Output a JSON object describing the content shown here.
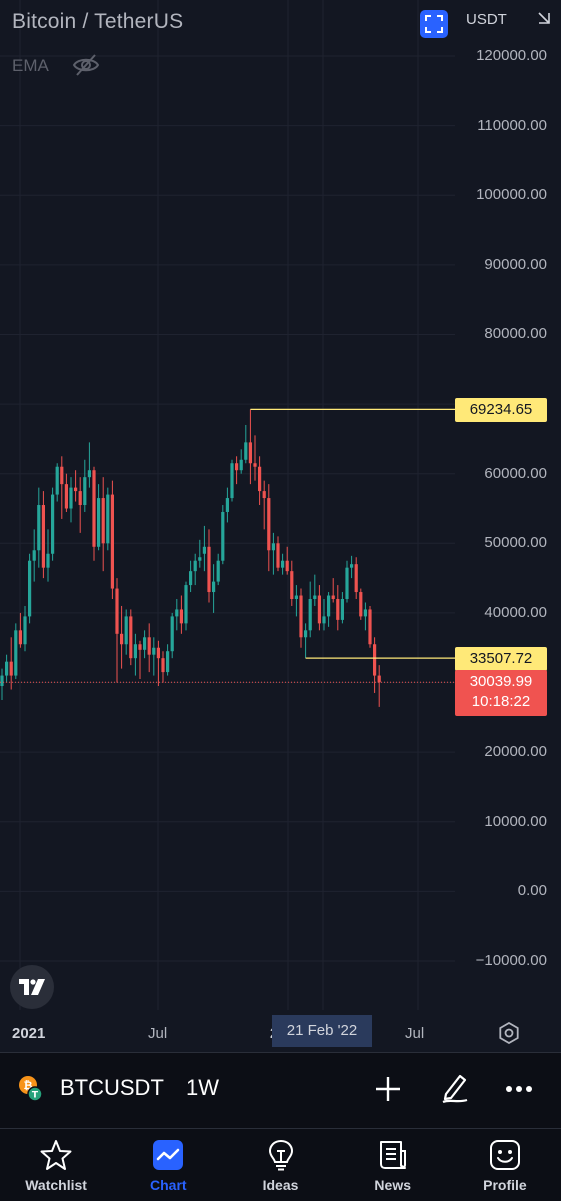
{
  "header": {
    "title": "Bitcoin / TetherUS",
    "indicator": "EMA",
    "currency": "USDT"
  },
  "price_axis": [
    "120000.00",
    "110000.00",
    "100000.00",
    "90000.00",
    "80000.00",
    "60000.00",
    "50000.00",
    "40000.00",
    "20000.00",
    "10000.00",
    "0.00",
    "−10000.00"
  ],
  "time_axis": {
    "labels": [
      {
        "text": "2021",
        "bold": true
      },
      {
        "text": "Jul",
        "bold": false
      },
      {
        "text": "2022",
        "bold": true
      },
      {
        "text": "Jul",
        "bold": false
      }
    ],
    "crosshair_date": "21 Feb '22"
  },
  "tags": {
    "high": "69234.65",
    "low": "33507.72",
    "last_price": "30039.99",
    "countdown": "10:18:22"
  },
  "symbol_bar": {
    "symbol": "BTCUSDT",
    "interval": "1W"
  },
  "nav": {
    "items": [
      {
        "label": "Watchlist",
        "icon": "star-icon"
      },
      {
        "label": "Chart",
        "icon": "chart-icon"
      },
      {
        "label": "Ideas",
        "icon": "lightbulb-icon"
      },
      {
        "label": "News",
        "icon": "news-icon"
      },
      {
        "label": "Profile",
        "icon": "smiley-icon"
      }
    ],
    "active": "Chart"
  },
  "colors": {
    "background": "#131722",
    "up": "#26a69a",
    "down": "#ef5350",
    "level_line": "#ffe978",
    "accent": "#2962ff"
  },
  "chart_data": {
    "type": "candlestick",
    "timeframe": "1W",
    "ylim": [
      -10000,
      120000
    ],
    "levels": [
      69234.65,
      33507.72
    ],
    "last_price": 30039.99,
    "candles": [
      [
        29500,
        32000,
        27500,
        31000
      ],
      [
        31000,
        34000,
        30000,
        33000
      ],
      [
        33000,
        36500,
        29000,
        31000
      ],
      [
        31000,
        38500,
        30500,
        37500
      ],
      [
        37500,
        40000,
        35000,
        35500
      ],
      [
        35500,
        41000,
        34500,
        39500
      ],
      [
        39500,
        48500,
        38500,
        47500
      ],
      [
        47500,
        52000,
        44500,
        49000
      ],
      [
        49000,
        58000,
        46500,
        55500
      ],
      [
        55500,
        57500,
        45000,
        46500
      ],
      [
        46500,
        52000,
        44500,
        48500
      ],
      [
        48500,
        58000,
        47500,
        57000
      ],
      [
        57000,
        61500,
        56000,
        61000
      ],
      [
        61000,
        62500,
        53500,
        58500
      ],
      [
        58500,
        60000,
        54500,
        55000
      ],
      [
        55000,
        59500,
        53000,
        58000
      ],
      [
        58000,
        60500,
        56000,
        57500
      ],
      [
        57500,
        59500,
        51500,
        55500
      ],
      [
        55500,
        62000,
        54500,
        59500
      ],
      [
        59500,
        64500,
        58000,
        60500
      ],
      [
        60500,
        61000,
        47500,
        49500
      ],
      [
        49500,
        58500,
        49000,
        56500
      ],
      [
        56500,
        59500,
        46000,
        50000
      ],
      [
        50000,
        58000,
        49000,
        57000
      ],
      [
        57000,
        59000,
        42000,
        43500
      ],
      [
        43500,
        45000,
        30000,
        37000
      ],
      [
        37000,
        41000,
        32000,
        35500
      ],
      [
        35500,
        40500,
        34000,
        39500
      ],
      [
        39500,
        40500,
        32500,
        33500
      ],
      [
        33500,
        37000,
        31000,
        35500
      ],
      [
        35500,
        36000,
        30500,
        34700
      ],
      [
        34700,
        37500,
        33500,
        36500
      ],
      [
        36500,
        38500,
        31500,
        34000
      ],
      [
        34000,
        36500,
        31000,
        35000
      ],
      [
        35000,
        36000,
        29500,
        33500
      ],
      [
        33500,
        34500,
        30000,
        31500
      ],
      [
        31500,
        35500,
        31000,
        34500
      ],
      [
        34500,
        40000,
        33500,
        39500
      ],
      [
        39500,
        42000,
        37500,
        40500
      ],
      [
        40500,
        42500,
        37000,
        38500
      ],
      [
        38500,
        44500,
        37500,
        44000
      ],
      [
        44000,
        47500,
        43000,
        46000
      ],
      [
        46000,
        48500,
        44000,
        47500
      ],
      [
        47500,
        50500,
        46500,
        48000
      ],
      [
        48500,
        52500,
        46000,
        49500
      ],
      [
        49500,
        52000,
        41500,
        43000
      ],
      [
        43000,
        47000,
        40000,
        44500
      ],
      [
        44500,
        48500,
        44000,
        47500
      ],
      [
        47500,
        55500,
        47000,
        54500
      ],
      [
        54500,
        58000,
        53000,
        56500
      ],
      [
        56500,
        62000,
        56000,
        61500
      ],
      [
        61500,
        62500,
        58500,
        60500
      ],
      [
        60500,
        63500,
        60000,
        62000
      ],
      [
        62000,
        67000,
        61500,
        64500
      ],
      [
        64500,
        69234.65,
        58500,
        61500
      ],
      [
        61500,
        65500,
        59000,
        61000
      ],
      [
        61000,
        62500,
        55500,
        57500
      ],
      [
        57500,
        59000,
        52000,
        56500
      ],
      [
        56500,
        58500,
        46000,
        49000
      ],
      [
        49000,
        51500,
        45500,
        50000
      ],
      [
        50000,
        51000,
        46000,
        46500
      ],
      [
        46500,
        48500,
        45500,
        47500
      ],
      [
        47500,
        49500,
        45500,
        46000
      ],
      [
        46000,
        47500,
        41000,
        42000
      ],
      [
        42000,
        44000,
        39500,
        42500
      ],
      [
        42500,
        43500,
        35000,
        36500
      ],
      [
        36500,
        38500,
        33507.72,
        37500
      ],
      [
        37500,
        44500,
        36500,
        42000
      ],
      [
        42000,
        45500,
        41000,
        42500
      ],
      [
        42500,
        44000,
        37500,
        38500
      ],
      [
        38500,
        42000,
        37500,
        39500
      ],
      [
        39500,
        43000,
        38000,
        42500
      ],
      [
        42500,
        45000,
        41500,
        42000
      ],
      [
        42000,
        44000,
        37500,
        39000
      ],
      [
        39000,
        43000,
        38500,
        42000
      ],
      [
        42000,
        47500,
        41500,
        46500
      ],
      [
        46500,
        48200,
        45000,
        47000
      ],
      [
        47000,
        48000,
        42000,
        43000
      ],
      [
        43000,
        43500,
        39000,
        39500
      ],
      [
        39500,
        41500,
        37500,
        40500
      ],
      [
        40500,
        41000,
        35000,
        35500
      ],
      [
        35500,
        36500,
        28500,
        31000
      ],
      [
        31000,
        32500,
        26500,
        30039.99
      ]
    ]
  }
}
